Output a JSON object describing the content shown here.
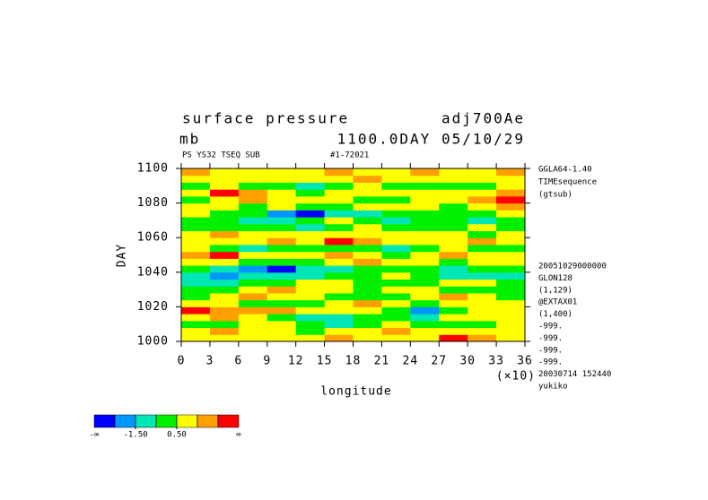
{
  "chart_data": {
    "type": "heatmap",
    "title": "surface pressure",
    "title_right": "adj700Ae",
    "subtitle": "mb",
    "subtitle_right": "1100.0DAY 05/10/29",
    "info_left": "PS YS32 TSEQ SUB",
    "info_right": "#1-72021",
    "xlabel": "longitude",
    "ylabel": "DAY",
    "x_multiplier": "(×10)",
    "side_top": [
      "GGLA64-1.40",
      "TIMEsequence",
      "(gtsub)"
    ],
    "side_bottom": [
      "20051029000000",
      "GLON128",
      "(1,129)",
      "@EXTAX01",
      "(1,400)",
      "-999.",
      "-999.",
      "-999.",
      "-999.",
      "20030714 152440",
      "yukiko"
    ],
    "xlim": [
      0,
      36
    ],
    "ylim": [
      1000,
      1100
    ],
    "xticks": [
      0,
      3,
      6,
      9,
      12,
      15,
      18,
      21,
      24,
      27,
      30,
      33,
      36
    ],
    "yticks": [
      1000,
      1020,
      1040,
      1060,
      1080,
      1100
    ],
    "x": [
      1.5,
      4.5,
      7.5,
      10.5,
      13.5,
      16.5,
      19.5,
      22.5,
      25.5,
      28.5,
      31.5,
      34.5
    ],
    "y": [
      1002,
      1006,
      1010,
      1014,
      1018,
      1022,
      1026,
      1030,
      1034,
      1038,
      1042,
      1046,
      1050,
      1054,
      1058,
      1062,
      1066,
      1070,
      1074,
      1078,
      1082,
      1086,
      1090,
      1094,
      1098
    ],
    "z": [
      [
        1,
        1,
        0.8,
        1.2,
        1,
        1.8,
        1,
        0.6,
        1.2,
        2.6,
        1.8,
        1
      ],
      [
        0.8,
        1.8,
        1.2,
        0.6,
        0.2,
        1,
        0.8,
        1.6,
        1,
        1.2,
        0.6,
        0.8
      ],
      [
        0.2,
        -0.2,
        0.6,
        0.8,
        0,
        -0.6,
        0.2,
        0.6,
        0.4,
        0,
        -0.2,
        0.6
      ],
      [
        0.6,
        1.6,
        1,
        0.2,
        -0.8,
        -1,
        0.3,
        0.2,
        -0.6,
        0.6,
        0.8,
        1
      ],
      [
        2.7,
        2,
        1.6,
        1.8,
        0.8,
        1,
        0.6,
        -0.2,
        -1.6,
        0.2,
        1,
        0.6
      ],
      [
        1.2,
        0.6,
        0.2,
        -0.2,
        0.4,
        1.2,
        1.6,
        0.8,
        0.2,
        0.6,
        0.8,
        1.2
      ],
      [
        0.4,
        1,
        1.8,
        1.2,
        0.8,
        0.2,
        -0.4,
        0.2,
        1,
        1.8,
        1.2,
        0.4
      ],
      [
        -0.2,
        0.2,
        0.8,
        1.6,
        1.2,
        0.8,
        0.4,
        1,
        0.6,
        0.2,
        -0.2,
        0.2
      ],
      [
        -0.8,
        -1.2,
        -0.4,
        0.2,
        0.6,
        1,
        0.2,
        -0.2,
        0.4,
        0.8,
        0.6,
        -0.4
      ],
      [
        -0.6,
        -1.8,
        -1.2,
        -0.8,
        -1,
        -0.4,
        0.2,
        0.6,
        0.2,
        -0.6,
        -1,
        -0.6
      ],
      [
        0.2,
        -0.6,
        -1.6,
        -2.6,
        -1.2,
        -0.6,
        -0.2,
        0.4,
        -0.4,
        -0.8,
        -0.2,
        0.4
      ],
      [
        0.8,
        1.2,
        0.4,
        -0.2,
        0.2,
        0.8,
        1.6,
        1.2,
        0.6,
        0.2,
        0.6,
        1
      ],
      [
        1.6,
        2.6,
        1.2,
        0.6,
        1,
        1.8,
        1.2,
        0.4,
        0.8,
        1.6,
        1,
        0.6
      ],
      [
        0.6,
        0.2,
        -0.6,
        -0.2,
        0.4,
        0.2,
        -0.4,
        -0.8,
        0.2,
        0.6,
        0.2,
        -0.2
      ],
      [
        1,
        0.8,
        1.2,
        1.6,
        1.2,
        2.7,
        1.8,
        1.2,
        0.6,
        1,
        1.6,
        1.2
      ],
      [
        1.2,
        1.6,
        0.8,
        0.6,
        1,
        1.2,
        0.8,
        0.6,
        1.2,
        0.8,
        0.4,
        0.8
      ],
      [
        0.2,
        -0.4,
        0.4,
        0.2,
        -0.6,
        0.2,
        0.6,
        0.2,
        -0.2,
        0.4,
        0.6,
        0.2
      ],
      [
        -0.4,
        0.2,
        -0.8,
        -1.2,
        0.2,
        0.6,
        -0.2,
        -0.8,
        -0.4,
        0.2,
        -0.6,
        -0.4
      ],
      [
        0.6,
        0.2,
        -0.4,
        -1.6,
        -2.6,
        -1.2,
        -0.6,
        0.2,
        0.4,
        -0.2,
        0.2,
        0.6
      ],
      [
        1,
        0.6,
        0.2,
        0.8,
        -0.4,
        -0.2,
        0.6,
        1,
        0.6,
        0.2,
        1.2,
        1.6
      ],
      [
        0.4,
        1.2,
        1.6,
        0.8,
        0.6,
        1.2,
        0.4,
        -0.2,
        0.6,
        1.2,
        1.8,
        2.6
      ],
      [
        1.2,
        2.6,
        1.6,
        0.6,
        0.2,
        0.8,
        1,
        0.6,
        1.2,
        0.6,
        1,
        1.8
      ],
      [
        0.2,
        0.6,
        0.2,
        -0.4,
        -0.8,
        0.2,
        0.6,
        0.2,
        -0.2,
        0.4,
        0.2,
        0.8
      ],
      [
        1,
        1.4,
        0.8,
        1.2,
        0.6,
        1,
        1.6,
        1.2,
        0.8,
        1,
        1.2,
        0.6
      ],
      [
        1.6,
        1.2,
        1,
        0.8,
        1.2,
        1.6,
        1,
        1.2,
        1.8,
        1,
        1.2,
        1.6
      ]
    ],
    "levels": [
      -2.5,
      -1.5,
      -0.5,
      0.5,
      1.5,
      2.5
    ],
    "colors": [
      "#0000ff",
      "#0096ff",
      "#00e6b4",
      "#00f000",
      "#ffff00",
      "#ffa000",
      "#ff0000"
    ],
    "colorbar_low": "-∞",
    "colorbar_high": "∞",
    "colorbar_ticks": [
      {
        "value": -1.5,
        "label": "-1.50"
      },
      {
        "value": 0.5,
        "label": "0.50"
      }
    ]
  }
}
